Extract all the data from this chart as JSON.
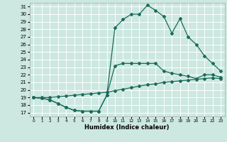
{
  "xlabel": "Humidex (Indice chaleur)",
  "bg_color": "#cce8e0",
  "line_color": "#1a6b5a",
  "grid_color": "#ffffff",
  "xlim": [
    -0.5,
    23.5
  ],
  "ylim": [
    16.5,
    31.5
  ],
  "xticks": [
    0,
    1,
    2,
    3,
    4,
    5,
    6,
    7,
    8,
    9,
    10,
    11,
    12,
    13,
    14,
    15,
    16,
    17,
    18,
    19,
    20,
    21,
    22,
    23
  ],
  "yticks": [
    17,
    18,
    19,
    20,
    21,
    22,
    23,
    24,
    25,
    26,
    27,
    28,
    29,
    30,
    31
  ],
  "line_top_x": [
    0,
    1,
    2,
    3,
    4,
    5,
    6,
    7,
    8,
    9,
    10,
    11,
    12,
    13,
    14,
    15,
    16,
    17,
    18,
    19,
    20,
    21,
    22,
    23
  ],
  "line_top_y": [
    19.0,
    18.9,
    18.7,
    18.2,
    17.7,
    17.3,
    17.2,
    17.2,
    17.2,
    19.3,
    28.2,
    29.3,
    30.0,
    30.0,
    31.2,
    30.5,
    29.7,
    27.5,
    29.4,
    27.0,
    26.0,
    24.5,
    23.5,
    22.5
  ],
  "line_mid_x": [
    0,
    1,
    2,
    3,
    4,
    5,
    6,
    7,
    8,
    9,
    10,
    11,
    12,
    13,
    14,
    15,
    16,
    17,
    18,
    19,
    20,
    21,
    22,
    23
  ],
  "line_mid_y": [
    19.0,
    18.9,
    18.7,
    18.2,
    17.7,
    17.3,
    17.2,
    17.2,
    17.2,
    19.3,
    23.2,
    23.5,
    23.5,
    23.5,
    23.5,
    23.5,
    22.5,
    22.2,
    22.0,
    21.8,
    21.5,
    22.0,
    22.0,
    21.7
  ],
  "line_bot_x": [
    0,
    1,
    2,
    3,
    4,
    5,
    6,
    7,
    8,
    9,
    10,
    11,
    12,
    13,
    14,
    15,
    16,
    17,
    18,
    19,
    20,
    21,
    22,
    23
  ],
  "line_bot_y": [
    19.0,
    19.0,
    19.0,
    19.1,
    19.2,
    19.3,
    19.4,
    19.5,
    19.6,
    19.7,
    19.9,
    20.1,
    20.3,
    20.5,
    20.7,
    20.8,
    21.0,
    21.1,
    21.2,
    21.3,
    21.4,
    21.5,
    21.6,
    21.5
  ]
}
